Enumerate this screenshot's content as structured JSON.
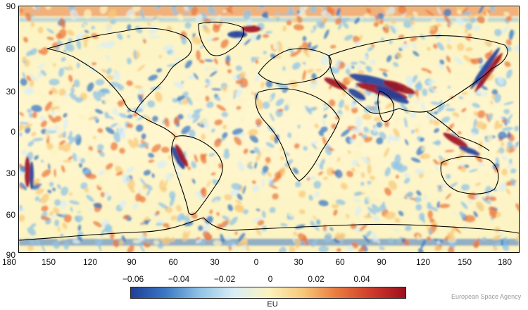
{
  "map": {
    "type": "global gravity-gradient anomaly field",
    "projection": "equirectangular",
    "extent": {
      "lon": [
        -180,
        180
      ],
      "lat": [
        -90,
        90
      ]
    },
    "features": [
      "coastlines",
      "filled anomaly raster"
    ]
  },
  "axes": {
    "lat_ticks": [
      "90",
      "60",
      "30",
      "0",
      "30",
      "60",
      "90"
    ],
    "lon_ticks": [
      "180",
      "150",
      "120",
      "90",
      "60",
      "30",
      "0",
      "30",
      "60",
      "90",
      "120",
      "150",
      "180"
    ]
  },
  "colorbar": {
    "ticks": [
      "−0.06",
      "−0.04",
      "−0.02",
      "0",
      "0.02",
      "0.04"
    ],
    "tick_values": [
      -0.06,
      -0.04,
      -0.02,
      0,
      0.02,
      0.04
    ],
    "range": [
      -0.07,
      0.05
    ],
    "unit": "EU",
    "colors": [
      "#1e3f9a",
      "#3a78c4",
      "#8fc3e6",
      "#d8eef6",
      "#fbf3c0",
      "#f7c97a",
      "#ea7a3f",
      "#cf3b2b",
      "#9e0e1e"
    ]
  },
  "credit": "European Space Agency"
}
